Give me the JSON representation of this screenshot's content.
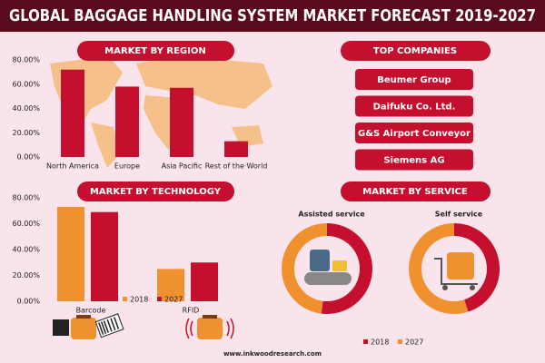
{
  "title": "GLOBAL BAGGAGE HANDLING SYSTEM MARKET FORECAST 2019-2027",
  "top_companies": {
    "header": "TOP COMPANIES",
    "items": [
      "Beumer Group",
      "Daifuku Co. Ltd.",
      "G&S Airport Conveyor",
      "Siemens AG"
    ]
  },
  "source": "www.inkwoodresearch.com",
  "chart_data": [
    {
      "type": "bar",
      "title": "MARKET BY REGION",
      "categories": [
        "North America",
        "Europe",
        "Asia Pacific",
        "Rest of the World"
      ],
      "values": [
        72,
        58,
        57,
        13
      ],
      "color": "#c4102e",
      "ylim": [
        0,
        80
      ],
      "yticks": [
        {
          "value": 0,
          "label": "0.00%"
        },
        {
          "value": 20,
          "label": "20.00%"
        },
        {
          "value": 40,
          "label": "40.00%"
        },
        {
          "value": 60,
          "label": "60.00%"
        },
        {
          "value": 80,
          "label": "80.00%"
        }
      ]
    },
    {
      "type": "grouped_bar",
      "title": "MARKET BY TECHNOLOGY",
      "categories": [
        "Barcode",
        "RFID"
      ],
      "series": [
        {
          "name": "2018",
          "color": "#f0912f",
          "values": [
            73,
            25
          ]
        },
        {
          "name": "2027",
          "color": "#c4102e",
          "values": [
            69,
            30
          ]
        }
      ],
      "ylim": [
        0,
        80
      ],
      "yticks": [
        {
          "value": 0,
          "label": "0.00%"
        },
        {
          "value": 20,
          "label": "20.00%"
        },
        {
          "value": 40,
          "label": "40.00%"
        },
        {
          "value": 60,
          "label": "60.00%"
        },
        {
          "value": 80,
          "label": "80.00%"
        }
      ]
    },
    {
      "type": "donut",
      "title": "MARKET BY SERVICE",
      "categories": [
        "2018",
        "2027"
      ],
      "colors": [
        "#c4102e",
        "#f0912f"
      ],
      "series": [
        {
          "name": "Assisted service",
          "values": [
            52,
            48
          ]
        },
        {
          "name": "Self service",
          "values": [
            45,
            55
          ]
        }
      ]
    }
  ]
}
